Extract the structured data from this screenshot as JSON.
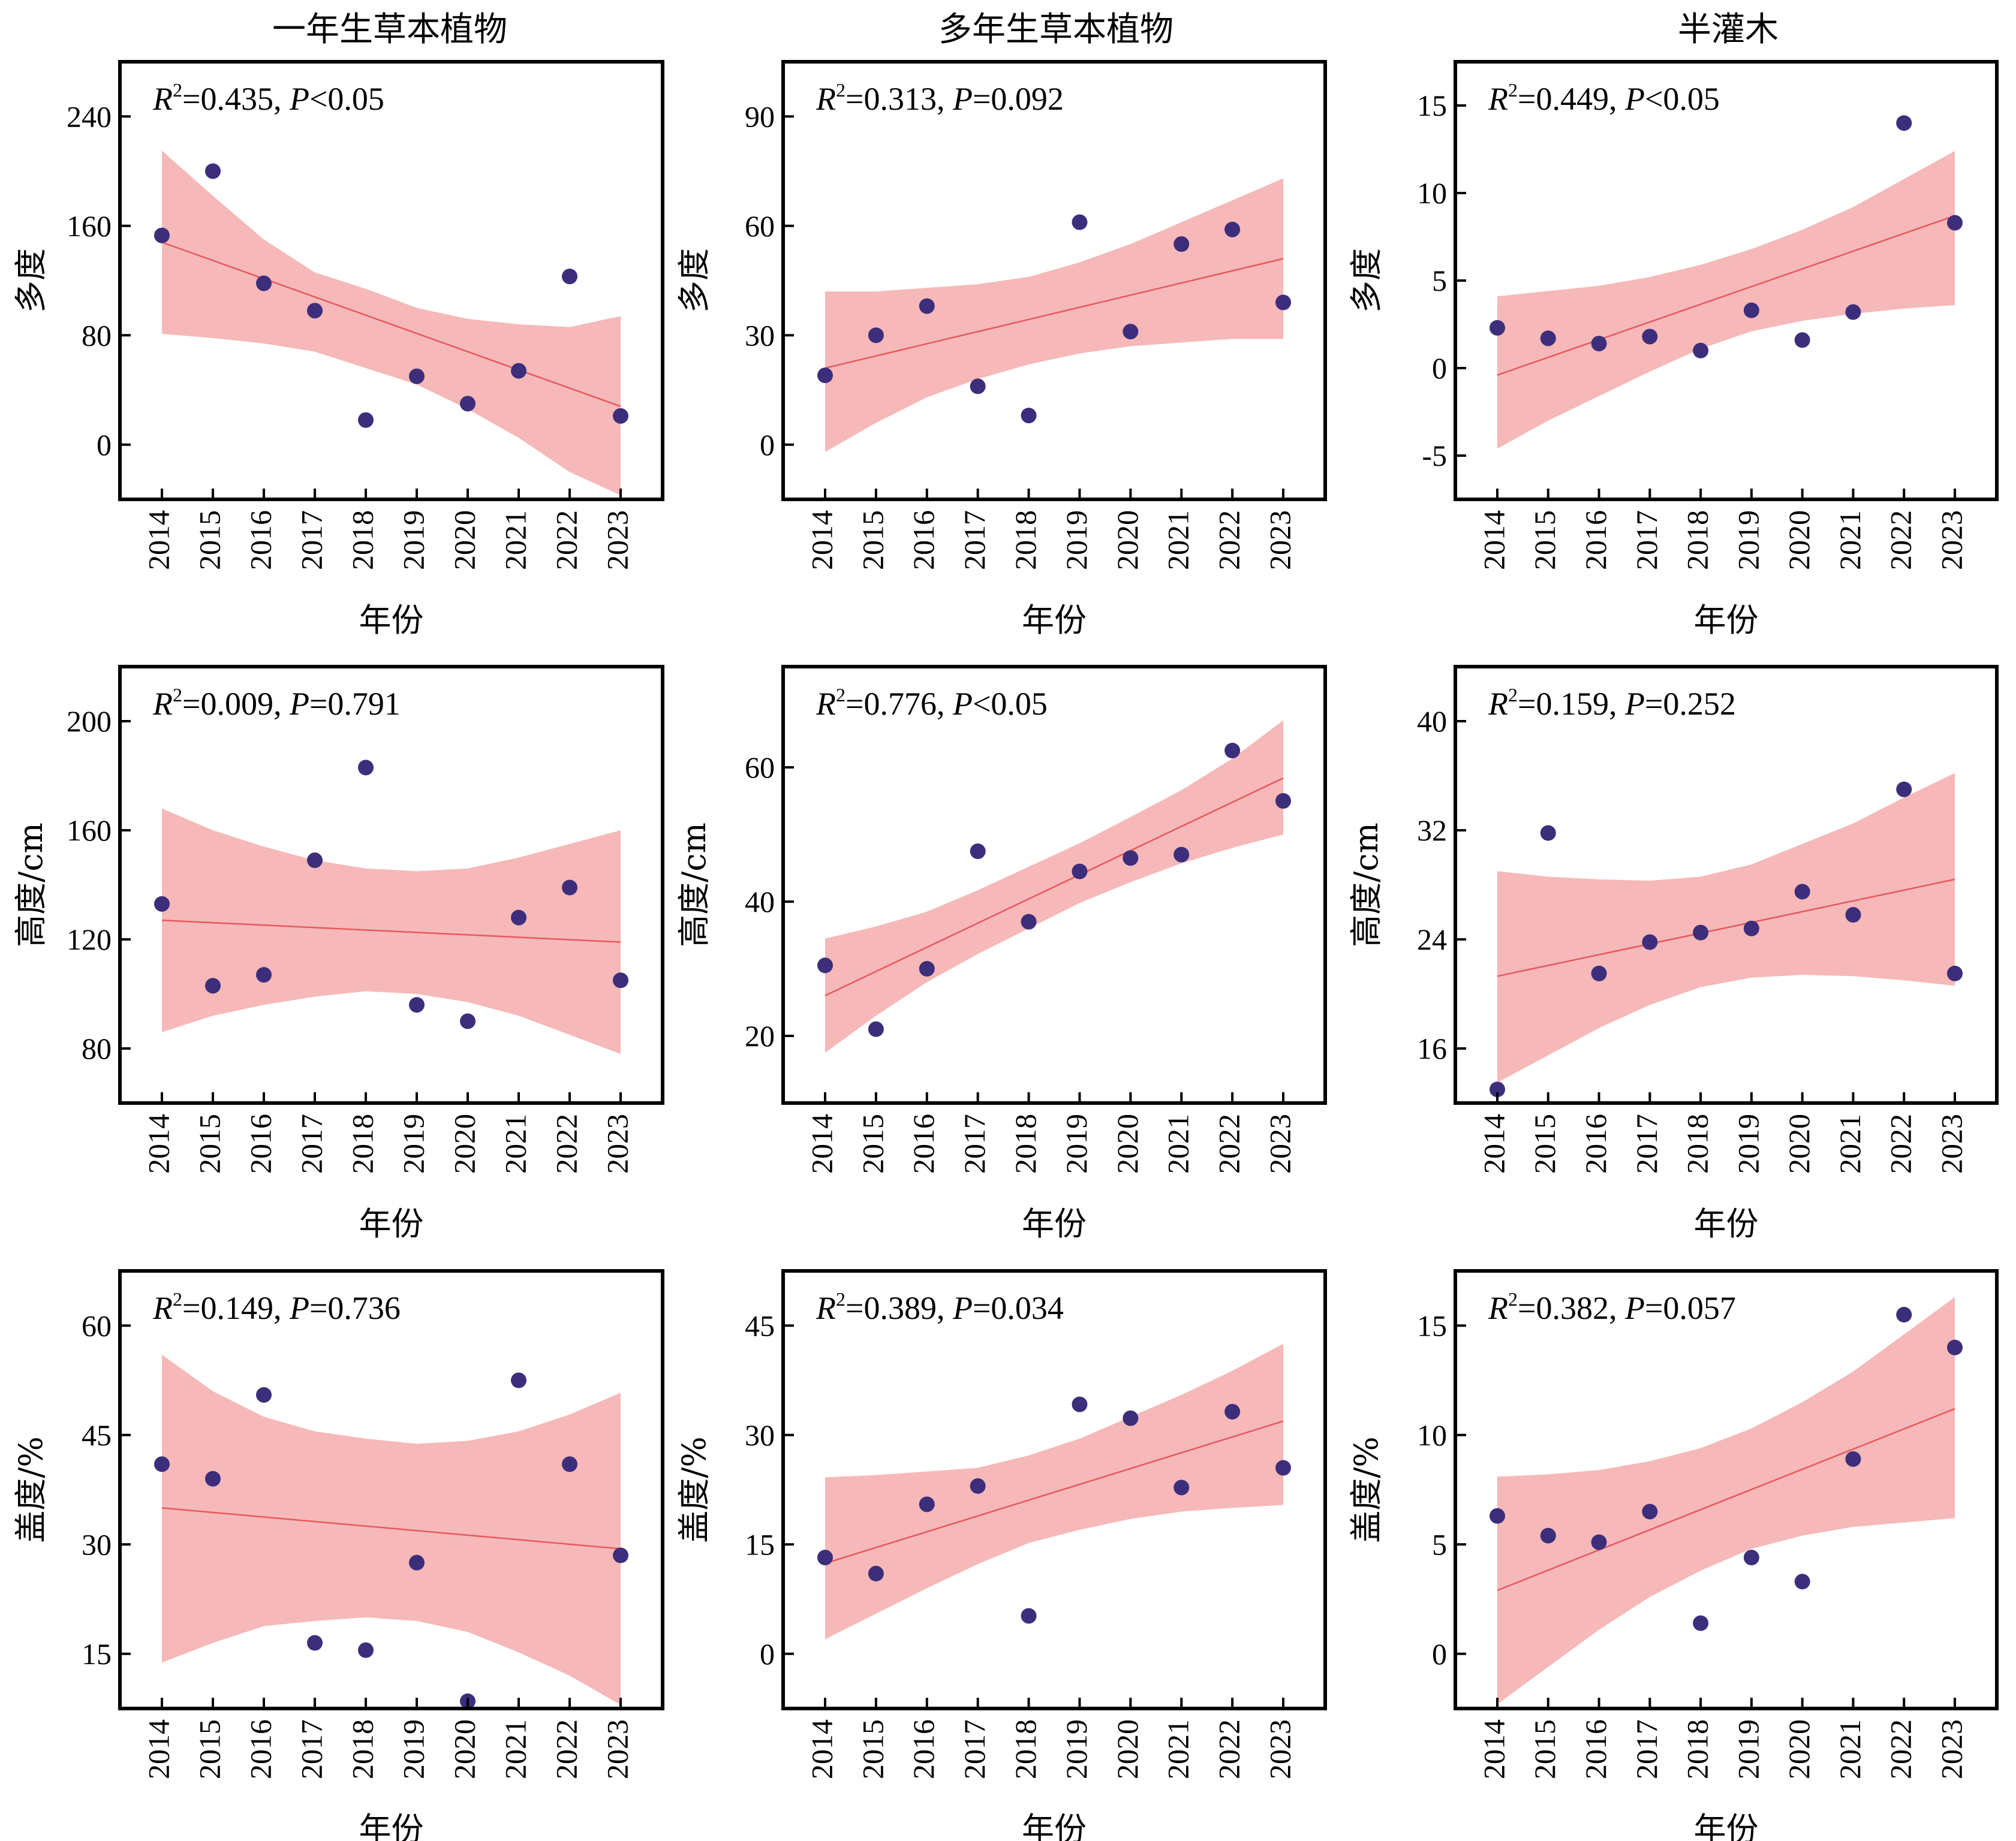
{
  "columns": [
    "一年生草本植物",
    "多年生草本植物",
    "半灌木"
  ],
  "x_axis_label": "年份",
  "years": [
    2014,
    2015,
    2016,
    2017,
    2018,
    2019,
    2020,
    2021,
    2022,
    2023
  ],
  "colors": {
    "band": "#f4a4a4",
    "trend": "#e8585a",
    "point": "#3d2e7c",
    "frame": "#000000"
  },
  "chart_data": [
    {
      "type": "scatter",
      "row": 0,
      "col": 0,
      "title": "一年生草本植物",
      "ylabel": "多度",
      "xlabel": "年份",
      "stat": {
        "r2": "0.435",
        "p_op": "<",
        "p": "0.05"
      },
      "ylim": [
        -40,
        280
      ],
      "yticks": [
        0,
        80,
        160,
        240
      ],
      "x": [
        2014,
        2015,
        2016,
        2017,
        2018,
        2019,
        2020,
        2021,
        2022,
        2023
      ],
      "y": [
        153,
        200,
        118,
        98,
        18,
        50,
        30,
        54,
        123,
        21
      ],
      "trend": [
        148,
        134,
        121,
        108,
        95,
        81,
        68,
        55,
        42,
        28
      ],
      "ci_upper": [
        215,
        182,
        150,
        126,
        114,
        100,
        92,
        88,
        86,
        94
      ],
      "ci_lower": [
        81,
        78,
        74,
        68,
        56,
        44,
        26,
        5,
        -20,
        -37
      ]
    },
    {
      "type": "scatter",
      "row": 0,
      "col": 1,
      "title": "多年生草本植物",
      "ylabel": "多度",
      "xlabel": "年份",
      "stat": {
        "r2": "0.313",
        "p_op": "=",
        "p": "0.092"
      },
      "ylim": [
        -15,
        105
      ],
      "yticks": [
        0,
        30,
        60,
        90
      ],
      "x": [
        2014,
        2015,
        2016,
        2017,
        2018,
        2019,
        2020,
        2021,
        2022,
        2023
      ],
      "y": [
        19,
        30,
        38,
        16,
        8,
        61,
        31,
        55,
        59,
        39
      ],
      "trend": [
        21,
        24,
        28,
        31,
        34,
        37,
        41,
        44,
        47,
        51
      ],
      "ci_upper": [
        42,
        42,
        43,
        44,
        46,
        50,
        55,
        61,
        67,
        73
      ],
      "ci_lower": [
        -2,
        6,
        13,
        18,
        22,
        25,
        27,
        28,
        29,
        29
      ]
    },
    {
      "type": "scatter",
      "row": 0,
      "col": 2,
      "title": "半灌木",
      "ylabel": "多度",
      "xlabel": "年份",
      "stat": {
        "r2": "0.449",
        "p_op": "<",
        "p": "0.05"
      },
      "ylim": [
        -7.5,
        17.5
      ],
      "yticks": [
        -5,
        0,
        5,
        10,
        15
      ],
      "x": [
        2014,
        2015,
        2016,
        2017,
        2018,
        2019,
        2020,
        2021,
        2022,
        2023
      ],
      "y": [
        2.3,
        1.7,
        1.4,
        1.8,
        1.0,
        3.3,
        1.6,
        3.2,
        14.0,
        8.3
      ],
      "trend": [
        -0.4,
        0.6,
        1.6,
        2.6,
        3.6,
        4.7,
        5.7,
        6.7,
        7.7,
        8.7
      ],
      "ci_upper": [
        4.1,
        4.4,
        4.7,
        5.2,
        5.9,
        6.8,
        7.9,
        9.2,
        10.8,
        12.4
      ],
      "ci_lower": [
        -4.6,
        -3.0,
        -1.6,
        -0.2,
        1.1,
        2.1,
        2.7,
        3.1,
        3.4,
        3.6
      ]
    },
    {
      "type": "scatter",
      "row": 1,
      "col": 0,
      "title": "",
      "ylabel": "高度/cm",
      "xlabel": "年份",
      "stat": {
        "r2": "0.009",
        "p_op": "=",
        "p": "0.791"
      },
      "ylim": [
        60,
        220
      ],
      "yticks": [
        80,
        120,
        160,
        200
      ],
      "x": [
        2014,
        2015,
        2016,
        2017,
        2018,
        2019,
        2020,
        2021,
        2022,
        2023
      ],
      "y": [
        133,
        103,
        107,
        149,
        183,
        96,
        90,
        128,
        139,
        105
      ],
      "trend": [
        127,
        126,
        125,
        124,
        123,
        123,
        122,
        121,
        120,
        119
      ],
      "ci_upper": [
        168,
        160,
        154,
        149,
        146,
        145,
        146,
        150,
        155,
        160
      ],
      "ci_lower": [
        86,
        92,
        96,
        99,
        101,
        100,
        97,
        92,
        85,
        78
      ]
    },
    {
      "type": "scatter",
      "row": 1,
      "col": 1,
      "title": "",
      "ylabel": "高度/cm",
      "xlabel": "年份",
      "stat": {
        "r2": "0.776",
        "p_op": "<",
        "p": "0.05"
      },
      "ylim": [
        10,
        75
      ],
      "yticks": [
        20,
        40,
        60
      ],
      "x": [
        2014,
        2015,
        2016,
        2017,
        2018,
        2019,
        2020,
        2021,
        2022,
        2023
      ],
      "y": [
        30.5,
        21.0,
        30.0,
        47.5,
        37.0,
        44.5,
        46.5,
        47.0,
        62.5,
        55.0
      ],
      "trend": [
        26.0,
        29.6,
        33.2,
        36.8,
        40.4,
        44.0,
        47.6,
        51.2,
        54.8,
        58.4
      ],
      "ci_upper": [
        34.5,
        36.3,
        38.5,
        41.7,
        45.2,
        48.7,
        52.6,
        56.6,
        61.3,
        67.0
      ],
      "ci_lower": [
        17.5,
        23.0,
        28.0,
        32.2,
        36.0,
        39.8,
        42.9,
        45.7,
        48.0,
        50.0
      ]
    },
    {
      "type": "scatter",
      "row": 1,
      "col": 2,
      "title": "",
      "ylabel": "高度/cm",
      "xlabel": "年份",
      "stat": {
        "r2": "0.159",
        "p_op": "=",
        "p": "0.252"
      },
      "ylim": [
        12,
        44
      ],
      "yticks": [
        16,
        24,
        32,
        40
      ],
      "x": [
        2014,
        2015,
        2016,
        2017,
        2018,
        2019,
        2020,
        2021,
        2022,
        2023
      ],
      "y": [
        13.0,
        31.8,
        21.5,
        23.8,
        24.5,
        24.8,
        27.5,
        25.8,
        35.0,
        21.5
      ],
      "trend": [
        21.3,
        22.1,
        22.9,
        23.7,
        24.5,
        25.2,
        26.0,
        26.8,
        27.6,
        28.4
      ],
      "ci_upper": [
        29.0,
        28.6,
        28.4,
        28.3,
        28.6,
        29.5,
        31.0,
        32.5,
        34.4,
        36.2
      ],
      "ci_lower": [
        13.5,
        15.5,
        17.5,
        19.2,
        20.5,
        21.2,
        21.4,
        21.3,
        21.0,
        20.6
      ]
    },
    {
      "type": "scatter",
      "row": 2,
      "col": 0,
      "title": "",
      "ylabel": "盖度/%",
      "xlabel": "年份",
      "stat": {
        "r2": "0.149",
        "p_op": "=",
        "p": "0.736"
      },
      "ylim": [
        7.5,
        67.5
      ],
      "yticks": [
        15,
        30,
        45,
        60
      ],
      "x": [
        2014,
        2015,
        2016,
        2017,
        2018,
        2019,
        2020,
        2021,
        2022,
        2023
      ],
      "y": [
        41.0,
        39.0,
        50.5,
        16.5,
        15.5,
        27.5,
        8.5,
        52.5,
        41.0,
        28.5
      ],
      "trend": [
        35.0,
        34.4,
        33.8,
        33.1,
        32.5,
        31.9,
        31.3,
        30.7,
        30.0,
        29.4
      ],
      "ci_upper": [
        56.0,
        51.0,
        47.5,
        45.5,
        44.5,
        43.8,
        44.2,
        45.5,
        47.8,
        50.8
      ],
      "ci_lower": [
        13.8,
        16.5,
        18.8,
        19.5,
        20.0,
        19.5,
        18.0,
        15.2,
        12.0,
        8.0
      ]
    },
    {
      "type": "scatter",
      "row": 2,
      "col": 1,
      "title": "",
      "ylabel": "盖度/%",
      "xlabel": "年份",
      "stat": {
        "r2": "0.389",
        "p_op": "=",
        "p": "0.034"
      },
      "ylim": [
        -7.5,
        52.5
      ],
      "yticks": [
        0,
        15,
        30,
        45
      ],
      "x": [
        2014,
        2015,
        2016,
        2017,
        2018,
        2019,
        2020,
        2021,
        2022,
        2023
      ],
      "y": [
        13.2,
        11.0,
        20.5,
        23.0,
        5.2,
        34.2,
        32.3,
        22.8,
        33.2,
        25.5
      ],
      "trend": [
        12.4,
        14.6,
        16.8,
        18.9,
        21.1,
        23.3,
        25.5,
        27.6,
        29.8,
        31.9
      ],
      "ci_upper": [
        24.2,
        24.5,
        25.0,
        25.5,
        27.2,
        29.5,
        32.5,
        35.5,
        38.8,
        42.5
      ],
      "ci_lower": [
        2.0,
        5.5,
        9.0,
        12.3,
        15.2,
        17.0,
        18.5,
        19.5,
        20.0,
        20.4
      ]
    },
    {
      "type": "scatter",
      "row": 2,
      "col": 2,
      "title": "",
      "ylabel": "盖度/%",
      "xlabel": "年份",
      "stat": {
        "r2": "0.382",
        "p_op": "=",
        "p": "0.057"
      },
      "ylim": [
        -2.5,
        17.5
      ],
      "yticks": [
        0,
        5,
        10,
        15
      ],
      "x": [
        2014,
        2015,
        2016,
        2017,
        2018,
        2019,
        2020,
        2021,
        2022,
        2023
      ],
      "y": [
        6.3,
        5.4,
        5.1,
        6.5,
        1.4,
        4.4,
        3.3,
        8.9,
        15.5,
        14.0
      ],
      "trend": [
        2.9,
        3.8,
        4.8,
        5.7,
        6.6,
        7.5,
        8.4,
        9.4,
        10.3,
        11.2
      ],
      "ci_upper": [
        8.1,
        8.2,
        8.4,
        8.8,
        9.4,
        10.3,
        11.5,
        12.9,
        14.6,
        16.3
      ],
      "ci_lower": [
        -2.3,
        -0.6,
        1.1,
        2.6,
        3.8,
        4.8,
        5.4,
        5.8,
        6.0,
        6.2
      ]
    }
  ]
}
